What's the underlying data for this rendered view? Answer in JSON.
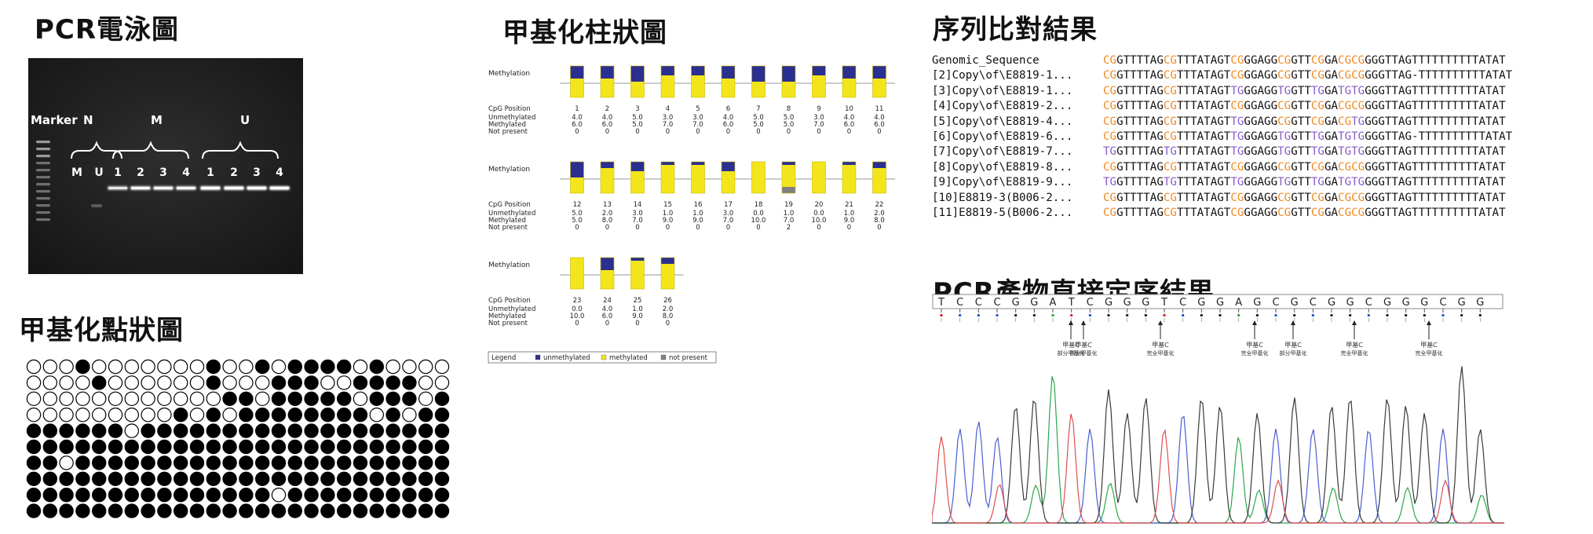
{
  "titles": {
    "gel": "PCR電泳圖",
    "bar": "甲基化柱狀圖",
    "dot": "甲基化點狀圖",
    "align": "序列比對結果",
    "seq": "PCR產物直接定序結果"
  },
  "gel": {
    "marker": "Marker",
    "groups": [
      "N",
      "M",
      "U"
    ],
    "lanes": [
      "M",
      "U",
      "1",
      "2",
      "3",
      "4",
      "1",
      "2",
      "3",
      "4"
    ]
  },
  "bar_chart": {
    "row_label_methylation": "Methylation",
    "row_labels": [
      "CpG Position",
      "Unmethylated",
      "Methylated",
      "Not present"
    ],
    "legend_title": "Legend",
    "legend": [
      "unmethylated",
      "methylated",
      "not present"
    ],
    "colors": {
      "unmethylated": "#2b2f8f",
      "methylated": "#f2e51c",
      "not_present": "#808080"
    },
    "blocks": [
      {
        "positions": [
          1,
          2,
          3,
          4,
          5,
          6,
          7,
          8,
          9,
          10,
          11
        ],
        "unmethylated": [
          "4.0",
          "4.0",
          "5.0",
          "3.0",
          "3.0",
          "4.0",
          "5.0",
          "5.0",
          "3.0",
          "4.0",
          "4.0"
        ],
        "methylated": [
          "6.0",
          "6.0",
          "5.0",
          "7.0",
          "7.0",
          "6.0",
          "5.0",
          "5.0",
          "7.0",
          "6.0",
          "6.0"
        ],
        "not_present": [
          "0",
          "0",
          "0",
          "0",
          "0",
          "0",
          "0",
          "0",
          "0",
          "0",
          "0"
        ]
      },
      {
        "positions": [
          12,
          13,
          14,
          15,
          16,
          17,
          18,
          19,
          20,
          21,
          22
        ],
        "unmethylated": [
          "5.0",
          "2.0",
          "3.0",
          "1.0",
          "1.0",
          "3.0",
          "0.0",
          "1.0",
          "0.0",
          "1.0",
          "2.0"
        ],
        "methylated": [
          "5.0",
          "8.0",
          "7.0",
          "9.0",
          "9.0",
          "7.0",
          "10.0",
          "7.0",
          "10.0",
          "9.0",
          "8.0"
        ],
        "not_present": [
          "0",
          "0",
          "0",
          "0",
          "0",
          "0",
          "0",
          "2",
          "0",
          "0",
          "0"
        ]
      },
      {
        "positions": [
          23,
          24,
          25,
          26
        ],
        "unmethylated": [
          "0.0",
          "4.0",
          "1.0",
          "2.0"
        ],
        "methylated": [
          "10.0",
          "6.0",
          "9.0",
          "8.0"
        ],
        "not_present": [
          "0",
          "0",
          "0",
          "0"
        ]
      }
    ]
  },
  "dot_plot": {
    "rows": [
      "00010000000100101111010000",
      "00001000000100011100111100",
      "00000000000011011111011101",
      "00000000010101111111101011",
      "11111101111111111111111111",
      "11111111111111111111111111",
      "11011111111111111111111111",
      "11111111111111111111111111",
      "11111111111111101111111111",
      "11111111111111111111111111"
    ]
  },
  "alignment": {
    "rows": [
      {
        "name": "Genomic_Sequence",
        "seq": "CGGTTTTAGCGTTTATAGTCGGGAGGCGGTTCGGACGCGGGGTTAGTTTTTTTTTTATAT"
      },
      {
        "name": "[2]Copy\\of\\E8819-1...",
        "seq": "CGGTTTTAGCGTTTATAGTCGGGAGGCGGTTCGGACGCGGGGTTAG-TTTTTTTTTTATAT"
      },
      {
        "name": "[3]Copy\\of\\E8819-1...",
        "seq": "CGGTTTTAGCGTTTATAGTTGGGAGGTGGTTTGGATGTGGGGTTAGTTTTTTTTTTATAT"
      },
      {
        "name": "[4]Copy\\of\\E8819-2...",
        "seq": "CGGTTTTAGCGTTTATAGTCGGGAGGCGGTTCGGACGCGGGGTTAGTTTTTTTTTTATAT"
      },
      {
        "name": "[5]Copy\\of\\E8819-4...",
        "seq": "CGGTTTTAGCGTTTATAGTTGGGAGGCGGTTCGGACGTGGGGTTAGTTTTTTTTTTATAT"
      },
      {
        "name": "[6]Copy\\of\\E8819-6...",
        "seq": "CGGTTTTAGCGTTTATAGTTGGGAGGTGGTTTGGATGTGGGGTTAG-TTTTTTTTTTATAT"
      },
      {
        "name": "[7]Copy\\of\\E8819-7...",
        "seq": "TGGTTTTAGTGTTTATAGTTGGGAGGTGGTTTGGATGTGGGGTTAGTTTTTTTTTTATAT"
      },
      {
        "name": "[8]Copy\\of\\E8819-8...",
        "seq": "CGGTTTTAGCGTTTATAGTCGGGAGGCGGTTCGGACGCGGGGTTAGTTTTTTTTTTATAT"
      },
      {
        "name": "[9]Copy\\of\\E8819-9...",
        "seq": "TGGTTTTAGTGTTTATAGTTGGGAGGTGGTTTGGATGTGGGGTTAGTTTTTTTTTTATAT"
      },
      {
        "name": "[10]E8819-3(B006-2...",
        "seq": "CGGTTTTAGCGTTTATAGTCGGGAGGCGGTTCGGACGCGGGGTTAGTTTTTTTTTTATAT"
      },
      {
        "name": "[11]E8819-5(B006-2...",
        "seq": "CGGTTTTAGCGTTTATAGTCGGGAGGCGGTTCGGACGCGGGGTTAGTTTTTTTTTTATAT"
      }
    ]
  },
  "chromatogram": {
    "bases": [
      "T",
      "C",
      "C",
      "C",
      "G",
      "G",
      "A",
      "T",
      "C",
      "G",
      "G",
      "G",
      "T",
      "C",
      "G",
      "G",
      "A",
      "G",
      "C",
      "G",
      "C",
      "G",
      "G",
      "C",
      "G",
      "G",
      "G",
      "C",
      "G",
      "G"
    ],
    "annotations": [
      "甲基C",
      "甲基C",
      "甲基C",
      "甲基C",
      "甲基C",
      "甲基C",
      "甲基C"
    ],
    "annotation_sub": [
      "部分甲基化",
      "部分甲基化",
      "完全甲基化",
      "完全甲基化",
      "部分甲基化",
      "完全甲基化",
      "完全甲基化"
    ]
  }
}
